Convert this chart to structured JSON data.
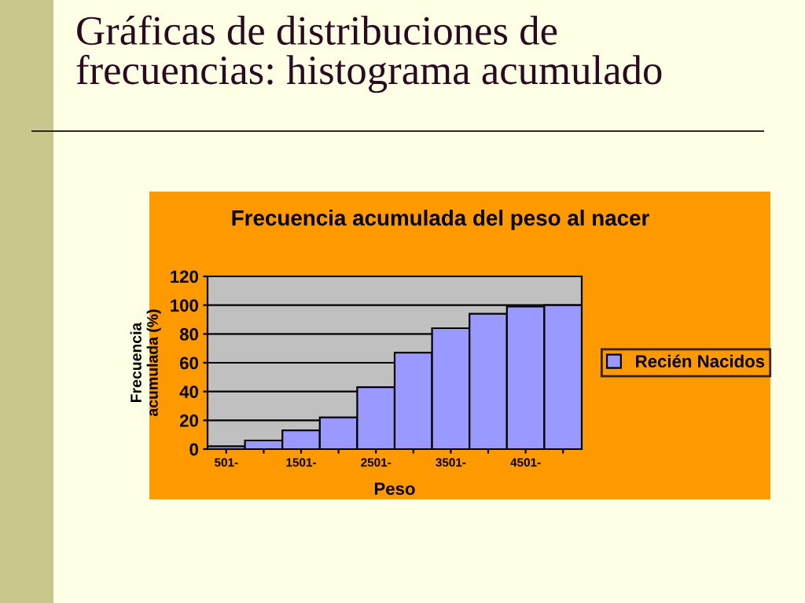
{
  "chart_data": {
    "type": "bar",
    "title": "Gráficas de distribuciones de\nfrecuencias: histograma acumulado",
    "subtitle": "Frecuencia acumulada del peso al nacer",
    "xlabel": "Peso",
    "ylabel": "Frecuencia\nacumulada (%)",
    "categories": [
      "501-",
      null,
      "1501-",
      null,
      "2501-",
      null,
      "3501-",
      null,
      "4501-",
      null
    ],
    "series": [
      {
        "name": "Recién Nacidos",
        "color": "#9999ff",
        "values": [
          2,
          6,
          13,
          22,
          43,
          67,
          84,
          94,
          99,
          100
        ]
      }
    ],
    "ylim": [
      0,
      120
    ],
    "yticks": [
      0,
      20,
      40,
      60,
      80,
      100,
      120
    ],
    "grid": "y",
    "legend": "right"
  }
}
